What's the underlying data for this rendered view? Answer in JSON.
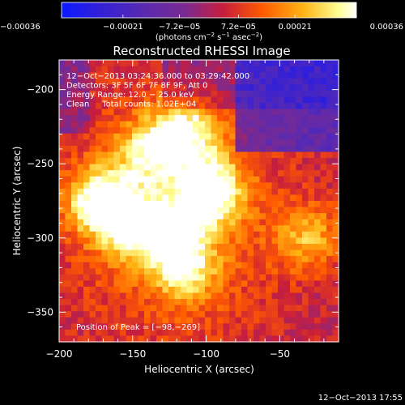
{
  "chart_data": {
    "type": "heatmap",
    "title": "Reconstructed RHESSI Image",
    "xlabel": "Heliocentric X (arcsec)",
    "ylabel": "Heliocentric Y (arcsec)",
    "xlim": [
      -200,
      -10
    ],
    "ylim": [
      -370,
      -180
    ],
    "x_ticks": [
      -200,
      -150,
      -100,
      -50
    ],
    "x_tick_labels": [
      "−200",
      "−150",
      "−100",
      "−50"
    ],
    "y_ticks": [
      -200,
      -250,
      -300,
      -350
    ],
    "y_tick_labels": [
      "−200",
      "−250",
      "−300",
      "−350"
    ],
    "colorbar": {
      "min": -0.00036,
      "max": 0.00036,
      "ticks": [
        -0.00036,
        -0.00021,
        -7.2e-05,
        7.2e-05,
        0.00021,
        0.00036
      ],
      "tick_labels": [
        "−0.00036",
        "−0.00021",
        "−7.2e−05",
        "7.2e−05",
        "0.00021",
        "0.00036"
      ],
      "units_text": "(photons cm",
      "units_exp1": "−2",
      "units_mid": " s",
      "units_exp2": "−1",
      "units_end": " asec",
      "units_exp3": "−2",
      "units_close": ")"
    },
    "info_lines": [
      "12−Oct−2013 03:24:36.000 to 03:29:42.000",
      "Detectors: 3F 5F 6F 7F 8F 9F, Att 0",
      "Energy Range: 12.0 − 25.0 keV",
      "Clean     Total counts: 1.02E+04"
    ],
    "peak_label": "Position of Peak = [−98,−269]",
    "peak_position": [
      -98,
      -269
    ],
    "sources": [
      {
        "x": -98,
        "y": -269,
        "intensity": 1.0
      },
      {
        "x": -172,
        "y": -275,
        "intensity": 0.95
      },
      {
        "x": -138,
        "y": -242,
        "intensity": 0.7
      },
      {
        "x": -112,
        "y": -228,
        "intensity": 0.7
      },
      {
        "x": -150,
        "y": -292,
        "intensity": 0.7
      },
      {
        "x": -122,
        "y": -298,
        "intensity": 0.6
      },
      {
        "x": -115,
        "y": -322,
        "intensity": 0.55
      },
      {
        "x": -30,
        "y": -300,
        "intensity": 0.55
      }
    ],
    "footer_timestamp": "12−Oct−2013 17:55",
    "colors": {
      "background": "#000000",
      "colormap": [
        "#1e1eff",
        "#4422cc",
        "#6a2ca0",
        "#aa1e50",
        "#e6280a",
        "#ff7800",
        "#ffc814",
        "#ffff96",
        "#ffffff"
      ]
    }
  }
}
